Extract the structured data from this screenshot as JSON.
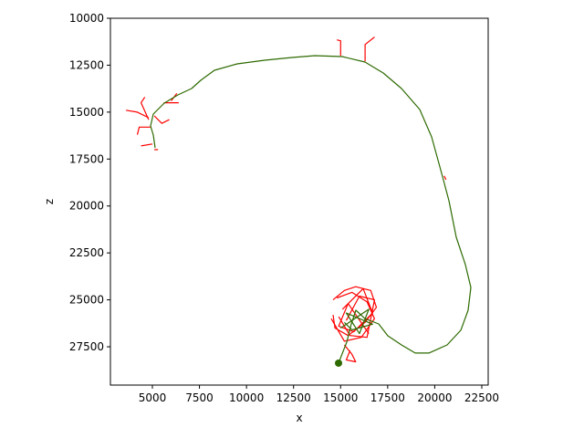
{
  "chart_data": {
    "type": "line",
    "xlabel": "x",
    "ylabel": "z",
    "xlim": [
      2770,
      22840
    ],
    "ylim": [
      29540,
      10000
    ],
    "xticks": [
      5000,
      7500,
      10000,
      12500,
      15000,
      17500,
      20000,
      22500
    ],
    "yticks": [
      10000,
      12500,
      15000,
      17500,
      20000,
      22500,
      25000,
      27500
    ],
    "series": [
      {
        "color": "#ff0000",
        "mode": "lines",
        "x": [
          15000,
          15000,
          14800,
          null,
          16300,
          16300,
          16800,
          null,
          4800,
          4200,
          3600,
          null,
          4800,
          4400,
          4600,
          null,
          5100,
          5500,
          5900,
          null,
          4900,
          4300,
          4200,
          null,
          5000,
          4400,
          null,
          5300,
          5100,
          null,
          6000,
          6300,
          null,
          5600,
          6400,
          null,
          20500,
          20600,
          null,
          14600,
          15200,
          15800,
          16600,
          16900,
          16300,
          15400,
          14700,
          14600,
          null,
          14800,
          15600,
          16400,
          16800,
          16100,
          15200,
          14500,
          null,
          15100,
          16200,
          16700,
          15700,
          14900,
          15400,
          16500,
          null,
          15300,
          16000,
          16800,
          16400,
          15500,
          14900,
          null,
          15200,
          15600,
          15800,
          15300,
          15500
        ],
        "values": [
          12000,
          11200,
          11150,
          null,
          12300,
          11400,
          11000,
          null,
          15300,
          15000,
          14900,
          null,
          15400,
          14500,
          14200,
          null,
          15200,
          15600,
          15400,
          null,
          15800,
          15800,
          16200,
          null,
          16700,
          16800,
          null,
          17000,
          17000,
          null,
          14400,
          14000,
          null,
          14500,
          14500,
          null,
          18400,
          18600,
          null,
          25000,
          24500,
          24300,
          24500,
          25400,
          26200,
          26900,
          26500,
          25800,
          null,
          24900,
          24600,
          25100,
          26000,
          27000,
          27200,
          26000,
          null,
          25500,
          24400,
          25700,
          26700,
          26400,
          25200,
          26800,
          null,
          26100,
          24800,
          25000,
          27000,
          26900,
          25900,
          null,
          27400,
          27900,
          28300,
          28200,
          27700
        ]
      },
      {
        "color": "#2d6a00",
        "mode": "lines",
        "x": [
          14890,
          15326,
          15569,
          15811,
          16296,
          17023,
          17508,
          18235,
          18962,
          19690,
          20659,
          21386,
          21774,
          21920,
          21629,
          21144,
          20756,
          20368,
          19835,
          19205,
          18235,
          17266,
          16296,
          15084,
          13630,
          12418,
          10963,
          9509,
          8296,
          7570,
          7085,
          6358,
          5630,
          5049,
          4903,
          5049,
          5146,
          null,
          15000,
          16500,
          16000,
          15300,
          16700,
          15600,
          15200
        ],
        "values": [
          28371,
          27253,
          26281,
          25552,
          26000,
          26281,
          26913,
          27399,
          27836,
          27836,
          27399,
          26621,
          25552,
          24337,
          23122,
          21664,
          19720,
          18262,
          16318,
          14860,
          13742,
          12916,
          12333,
          12041,
          11993,
          12090,
          12236,
          12430,
          12770,
          13305,
          13742,
          14082,
          14520,
          15103,
          15735,
          16221,
          16901,
          null,
          26500,
          25500,
          26800,
          25700,
          26300,
          26600,
          26200
        ]
      },
      {
        "color": "#2d6a00",
        "mode": "markers",
        "x": [
          14890
        ],
        "values": [
          28371
        ]
      }
    ]
  }
}
